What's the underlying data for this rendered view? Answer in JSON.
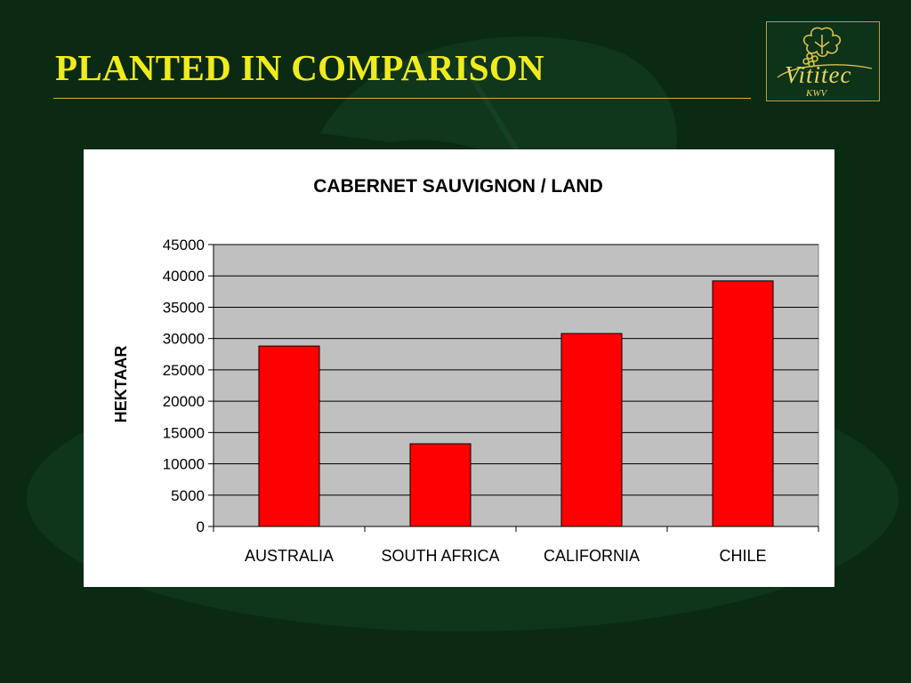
{
  "slide": {
    "title": "PLANTED IN COMPARISON",
    "background_color": "#0b2a14",
    "title_color": "#f0ec1c"
  },
  "logo": {
    "brand": "Vititec",
    "sub": "KWV",
    "icon": "grape-leaf-icon"
  },
  "chart_data": {
    "type": "bar",
    "title": "CABERNET SAUVIGNON / LAND",
    "xlabel": "",
    "ylabel": "HEKTAAR",
    "categories": [
      "AUSTRALIA",
      "SOUTH AFRICA",
      "CALIFORNIA",
      "CHILE"
    ],
    "values": [
      28800,
      13200,
      30800,
      39200
    ],
    "ylim": [
      0,
      45000
    ],
    "yticks": [
      0,
      5000,
      10000,
      15000,
      20000,
      25000,
      30000,
      35000,
      40000,
      45000
    ],
    "grid": true,
    "legend": "none",
    "bar_color": "#ff0000",
    "plot_background": "#c0c0c0"
  }
}
